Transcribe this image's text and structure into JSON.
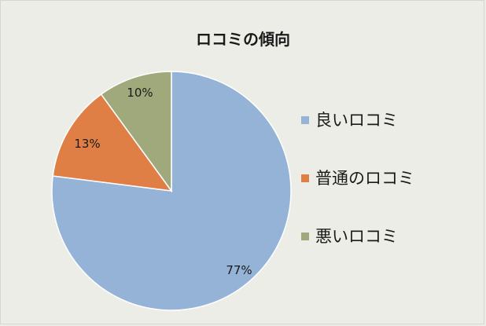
{
  "chart_data": {
    "type": "pie",
    "title": "ロコミの傾向",
    "categories": [
      "良いロコミ",
      "普通のロコミ",
      "悪いロコミ"
    ],
    "values": [
      77,
      13,
      10
    ],
    "data_labels": [
      "77%",
      "13%",
      "10%"
    ],
    "colors": [
      "#95b3d7",
      "#e07f45",
      "#a0a97b"
    ],
    "legend_position": "right",
    "start_angle_deg": 0,
    "direction": "clockwise"
  }
}
